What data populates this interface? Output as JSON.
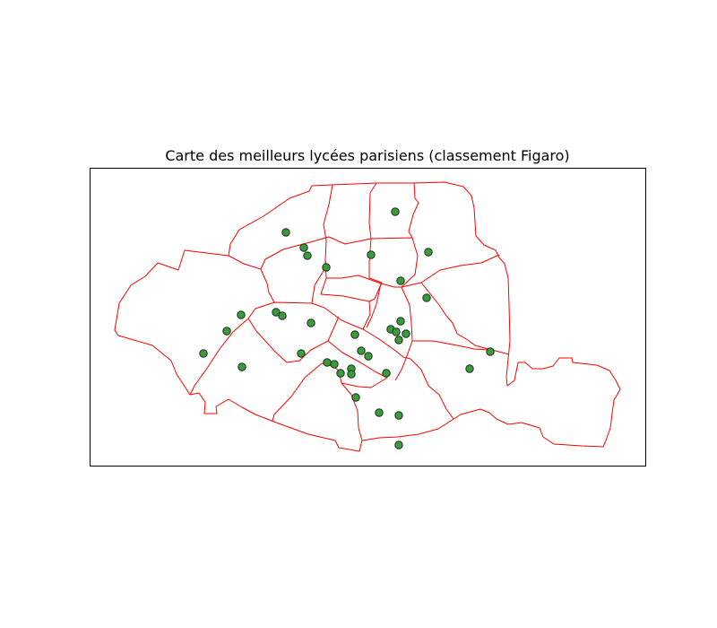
{
  "title": "Carte des meilleurs lycées parisiens (classement Figaro)",
  "colors": {
    "boundary": "#ff0000",
    "marker_fill": "#3c9a3c",
    "marker_edge": "#1f3d1f",
    "frame": "#000000",
    "background": "#ffffff"
  },
  "map": {
    "subject": "Paris arrondissements",
    "marker": "circle"
  }
}
